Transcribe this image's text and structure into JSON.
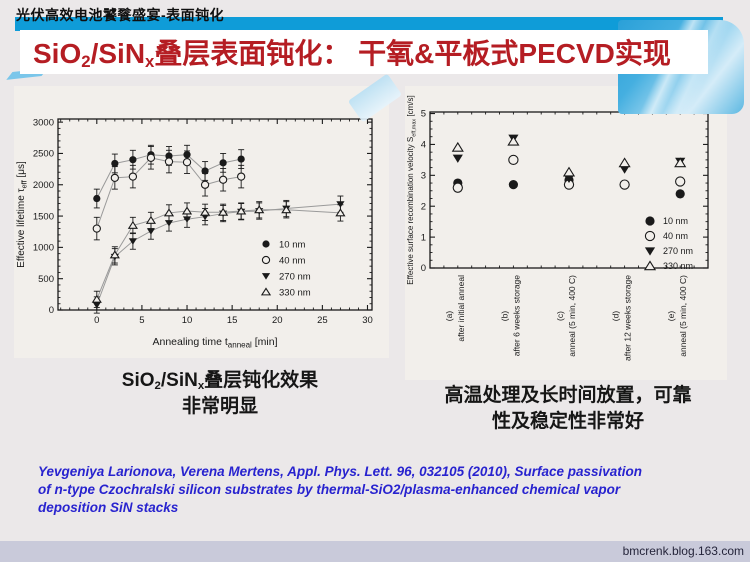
{
  "page": {
    "header": "光伏高效电池饕餮盛宴-表面钝化",
    "title": {
      "p1": "SiO",
      "s1": "2",
      "p2": "/SiN",
      "s2": "x",
      "p3": "叠层表面钝化： 干氧&平板式PECVD实现"
    },
    "watermark": "bmcrenk.blog.163.com"
  },
  "captions": {
    "left": {
      "p1": "SiO",
      "s1": "2",
      "p2": "/SiN",
      "s2": "x",
      "p3": "叠层钝化效果",
      "line2": "非常明显"
    },
    "right": {
      "line1": "高温处理及长时间放置，可靠",
      "line2": "性及稳定性非常好"
    }
  },
  "citation": {
    "text": "Yevgeniya Larionova, Verena Mertens, Appl. Phys. Lett. 96, 032105 (2010), Surface passivation\nof n-type Czochralski silicon substrates by thermal-SiO2/plasma-enhanced chemical vapor\ndeposition SiN stacks"
  },
  "colors": {
    "accent_bar": "#0f9cd8",
    "title_red": "#b51d23",
    "citation_blue": "#2823cf",
    "footer_strip": "#c9cada",
    "panel_bg": "#f2efeb",
    "marker_black": "#1a1a1a"
  },
  "chart_data": [
    {
      "type": "scatter",
      "title": "",
      "xlabel": {
        "pre": "Annealing time t",
        "sub": "anneal",
        "unit": " [min]"
      },
      "ylabel": {
        "pre": "Effective lifetime τ",
        "sub": "eff",
        "unit": " [μs]"
      },
      "xlim": [
        -4.3,
        30.5
      ],
      "ylim": [
        0,
        3000
      ],
      "xticks": [
        0,
        5,
        10,
        15,
        20,
        25,
        30
      ],
      "yticks": [
        0,
        500,
        1000,
        1500,
        2000,
        2500,
        3000
      ],
      "grid": false,
      "legend_position": "center-right",
      "series": [
        {
          "name": "10 nm",
          "marker": "circle-filled",
          "x": [
            0,
            2,
            4,
            6,
            8,
            10,
            12,
            14,
            16
          ],
          "y": [
            1780,
            2340,
            2400,
            2480,
            2460,
            2480,
            2220,
            2350,
            2410
          ],
          "yerr": 150
        },
        {
          "name": "40 nm",
          "marker": "circle-open",
          "x": [
            0,
            2,
            4,
            6,
            8,
            10,
            12,
            14,
            16
          ],
          "y": [
            1300,
            2110,
            2130,
            2430,
            2370,
            2360,
            2000,
            2080,
            2130
          ],
          "yerr": 180
        },
        {
          "name": "270 nm",
          "marker": "tri-down-filled",
          "x": [
            0,
            2,
            4,
            6,
            8,
            10,
            12,
            14,
            16,
            18,
            21,
            27
          ],
          "y": [
            80,
            850,
            1100,
            1260,
            1390,
            1450,
            1490,
            1540,
            1570,
            1580,
            1620,
            1690
          ],
          "yerr": 130
        },
        {
          "name": "330 nm",
          "marker": "tri-up-open",
          "x": [
            0,
            2,
            4,
            6,
            8,
            10,
            12,
            14,
            16,
            18,
            21,
            27
          ],
          "y": [
            170,
            880,
            1350,
            1430,
            1550,
            1580,
            1560,
            1560,
            1580,
            1600,
            1600,
            1550
          ],
          "yerr": 130
        }
      ]
    },
    {
      "type": "scatter",
      "title": "",
      "ylabel": {
        "pre": "Effective surface recombination velocity S",
        "sub": "eff,max",
        "unit": " [cm/s]"
      },
      "ylim": [
        0,
        5
      ],
      "yticks": [
        0,
        1,
        2,
        3,
        4,
        5
      ],
      "grid": false,
      "legend_position": "lower-right",
      "categories": [
        {
          "tag": "(a)",
          "label": "after initial anneal"
        },
        {
          "tag": "(b)",
          "label": "after 6 weeks storage"
        },
        {
          "tag": "(c)",
          "label": "anneal (5 min, 400 C)"
        },
        {
          "tag": "(d)",
          "label": "after 12 weeks storage"
        },
        {
          "tag": "(e)",
          "label": "anneal (5 min, 400 C)"
        }
      ],
      "series": [
        {
          "name": "10 nm",
          "marker": "circle-filled",
          "values": [
            2.75,
            2.7,
            2.85,
            2.7,
            2.4
          ]
        },
        {
          "name": "40 nm",
          "marker": "circle-open",
          "values": [
            2.6,
            3.5,
            2.7,
            2.7,
            2.8
          ]
        },
        {
          "name": "270 nm",
          "marker": "tri-down-filled",
          "values": [
            3.55,
            4.2,
            2.9,
            3.2,
            3.45
          ]
        },
        {
          "name": "330 nm",
          "marker": "tri-up-open",
          "values": [
            3.9,
            4.1,
            3.1,
            3.4,
            3.4
          ]
        }
      ]
    }
  ]
}
